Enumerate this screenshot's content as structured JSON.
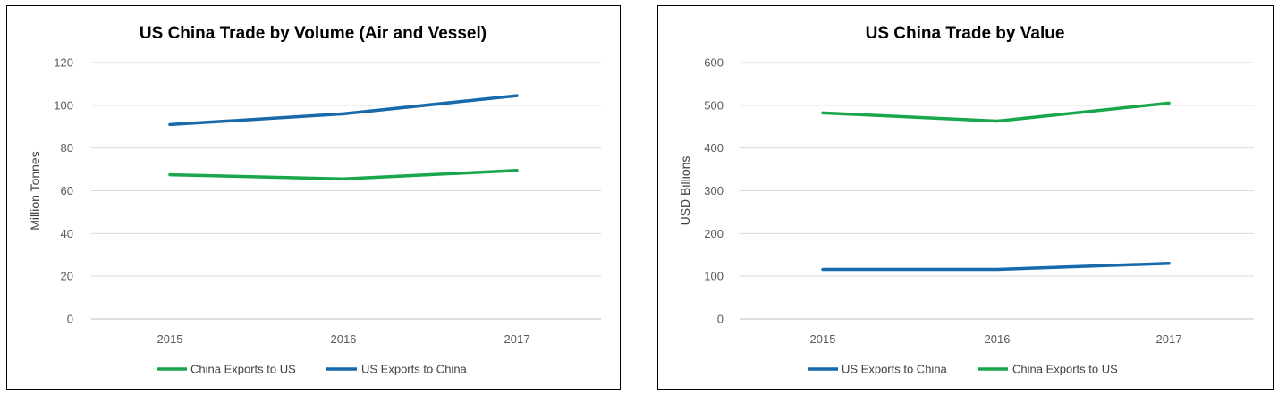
{
  "colors": {
    "green": "#1aa64a",
    "blue": "#1769aa"
  },
  "chart_data": [
    {
      "type": "line",
      "title": "US China Trade by Volume (Air and Vessel)",
      "xlabel": "",
      "ylabel": "Million Tonnes",
      "ylim": [
        0,
        120
      ],
      "yticks": [
        0,
        20,
        40,
        60,
        80,
        100,
        120
      ],
      "categories": [
        "2015",
        "2016",
        "2017"
      ],
      "series": [
        {
          "name": "China Exports to US",
          "color": "#1aa64a",
          "values": [
            67.5,
            65.5,
            69.5
          ]
        },
        {
          "name": "US Exports to China",
          "color": "#1769aa",
          "values": [
            91,
            96,
            104.5
          ]
        }
      ],
      "legend_order": [
        0,
        1
      ],
      "legend": "bottom",
      "grid": true
    },
    {
      "type": "line",
      "title": "US China Trade by Value",
      "xlabel": "",
      "ylabel": "USD Billions",
      "ylim": [
        0,
        600
      ],
      "yticks": [
        0,
        100,
        200,
        300,
        400,
        500,
        600
      ],
      "categories": [
        "2015",
        "2016",
        "2017"
      ],
      "series": [
        {
          "name": "US Exports to China",
          "color": "#1769aa",
          "values": [
            116,
            116,
            130
          ]
        },
        {
          "name": "China Exports to US",
          "color": "#1aa64a",
          "values": [
            482,
            463,
            505
          ]
        }
      ],
      "legend_order": [
        0,
        1
      ],
      "legend": "bottom",
      "grid": true
    }
  ]
}
